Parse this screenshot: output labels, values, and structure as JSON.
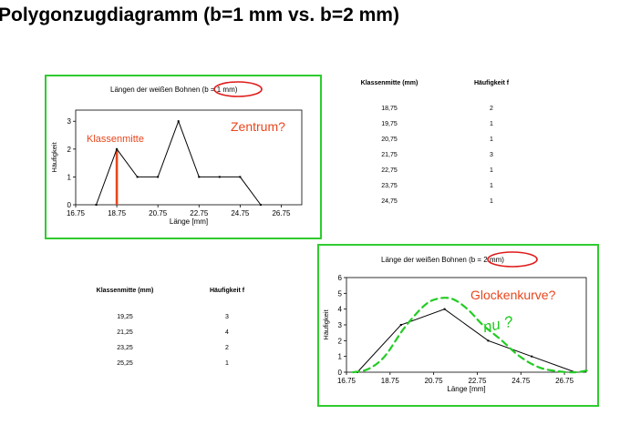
{
  "slide": {
    "title": "Polygonzugdiagramm (b=1 mm vs. b=2 mm)"
  },
  "chart_data": [
    {
      "type": "line",
      "title": "Längen der weißen Bohnen (b = 1 mm)",
      "title_prefix": "Längen der weißen Bohnen ",
      "title_circled": "(b = 1 mm)",
      "xlabel": "Länge [mm]",
      "ylabel": "Häufigkeit",
      "xlim": [
        16.75,
        27.75
      ],
      "ylim": [
        0,
        3.4
      ],
      "xticks": [
        "16.75",
        "18.75",
        "20.75",
        "22.75",
        "24.75",
        "26.75"
      ],
      "yticks": [
        "0",
        "1",
        "2",
        "3"
      ],
      "x": [
        17.75,
        18.75,
        19.75,
        20.75,
        21.75,
        22.75,
        23.75,
        24.75,
        25.75
      ],
      "y": [
        0,
        2,
        1,
        1,
        3,
        1,
        1,
        1,
        0
      ],
      "annotations": {
        "highlight_label": "Klassenmitte",
        "highlight_x": 18.75,
        "question": "Zentrum?"
      },
      "colors": {
        "line": "#000000",
        "highlight": "#e8461c",
        "frame": "#2ecc2e"
      }
    },
    {
      "type": "line",
      "title": "Länge der weißen Bohnen (b = 2 mm)",
      "title_prefix": "Länge der weißen Bohnen ",
      "title_circled": "(b = 2 mm)",
      "xlabel": "Länge [mm]",
      "ylabel": "Häufigkeit",
      "xlim": [
        16.75,
        27.75
      ],
      "ylim": [
        0,
        6
      ],
      "xticks": [
        "16.75",
        "18.75",
        "20.75",
        "22.75",
        "24.75",
        "26.75"
      ],
      "yticks": [
        "0",
        "1",
        "2",
        "3",
        "4",
        "5",
        "6"
      ],
      "x": [
        17.25,
        19.25,
        21.25,
        23.25,
        25.25,
        27.25
      ],
      "y": [
        0,
        3,
        4,
        2,
        1,
        0
      ],
      "curve": {
        "x": [
          17.05,
          17.75,
          18.5,
          19.4,
          20.3,
          20.9,
          21.6,
          22.3,
          23.0,
          23.8,
          24.7,
          25.6,
          26.5,
          27.3,
          27.9
        ],
        "y": [
          0,
          0.2,
          1.0,
          2.8,
          4.2,
          4.65,
          4.65,
          4.0,
          3.0,
          2.1,
          1.0,
          0.3,
          0.05,
          0,
          0.15
        ]
      },
      "annotations": {
        "question": "Glockenkurve?",
        "handwritten": "nu ?"
      },
      "colors": {
        "line": "#000000",
        "curve": "#22cc22",
        "circle": "#e01a1a",
        "question": "#e8461c",
        "frame": "#2ecc2e"
      }
    }
  ],
  "table1": {
    "headers": [
      "Klassenmitte (mm)",
      "Häufigkeit  f"
    ],
    "rows": [
      [
        "18,75",
        "2"
      ],
      [
        "19,75",
        "1"
      ],
      [
        "20,75",
        "1"
      ],
      [
        "21,75",
        "3"
      ],
      [
        "22,75",
        "1"
      ],
      [
        "23,75",
        "1"
      ],
      [
        "24,75",
        "1"
      ]
    ]
  },
  "table2": {
    "headers": [
      "Klassenmitte (mm)",
      "Häufigkeit  f"
    ],
    "rows": [
      [
        "19,25",
        "3"
      ],
      [
        "21,25",
        "4"
      ],
      [
        "23,25",
        "2"
      ],
      [
        "25,25",
        "1"
      ]
    ]
  }
}
